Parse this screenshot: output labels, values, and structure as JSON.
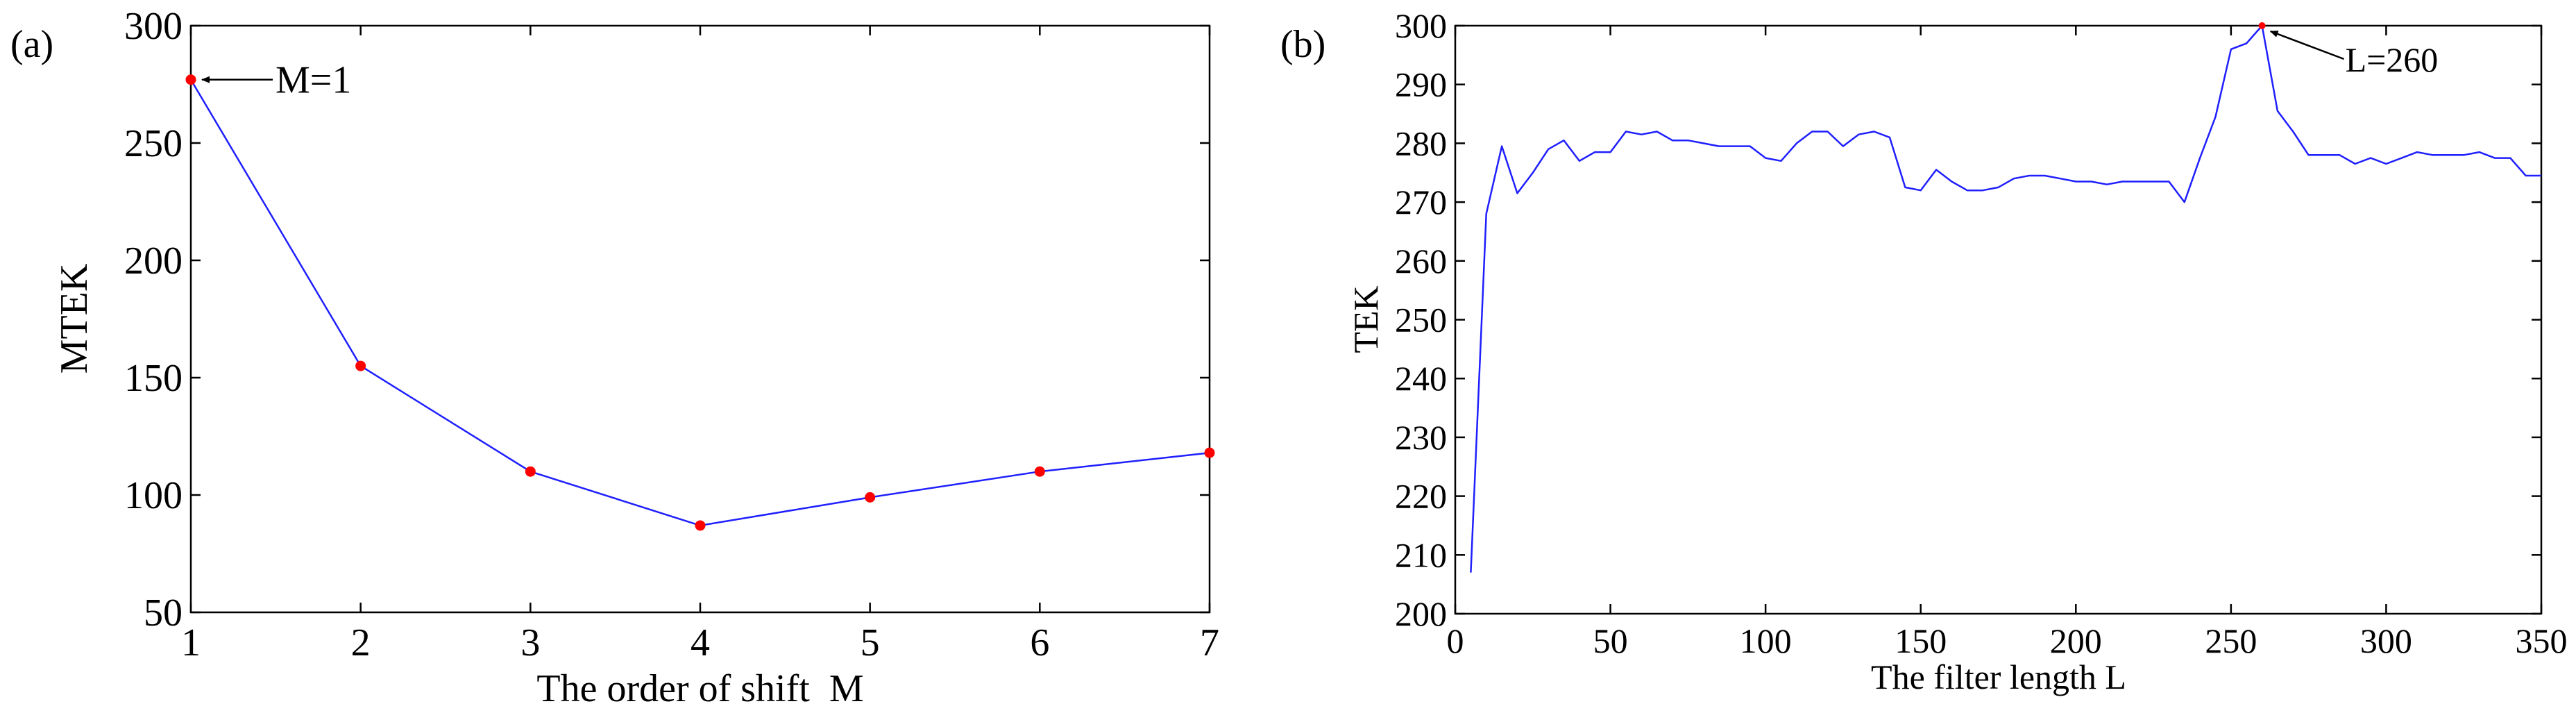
{
  "colors": {
    "line": "#1f1fff",
    "marker": "#ff0000",
    "axis": "#000000",
    "background": "#ffffff"
  },
  "panels": [
    {
      "label": "(a)"
    },
    {
      "label": "(b)"
    }
  ],
  "chart_data": [
    {
      "type": "line",
      "panel_label": "(a)",
      "xlabel": "The order of shift  M",
      "ylabel": "MTEK",
      "xlim": [
        1,
        7
      ],
      "ylim": [
        50,
        300
      ],
      "xticks": [
        1,
        2,
        3,
        4,
        5,
        6,
        7
      ],
      "yticks": [
        50,
        100,
        150,
        200,
        250,
        300
      ],
      "grid": false,
      "markers": true,
      "x": [
        1,
        2,
        3,
        4,
        5,
        6,
        7
      ],
      "y": [
        277,
        155,
        110,
        87,
        99,
        110,
        118
      ],
      "annotation": {
        "text": "M=1",
        "x": 1,
        "y": 277
      }
    },
    {
      "type": "line",
      "panel_label": "(b)",
      "xlabel": "The filter length L",
      "ylabel": "TEK",
      "xlim": [
        0,
        350
      ],
      "ylim": [
        200,
        300
      ],
      "xticks": [
        0,
        50,
        100,
        150,
        200,
        250,
        300,
        350
      ],
      "yticks": [
        200,
        210,
        220,
        230,
        240,
        250,
        260,
        270,
        280,
        290,
        300
      ],
      "grid": false,
      "markers": false,
      "x": [
        5,
        10,
        15,
        20,
        25,
        30,
        35,
        40,
        45,
        50,
        55,
        60,
        65,
        70,
        75,
        80,
        85,
        90,
        95,
        100,
        105,
        110,
        115,
        120,
        125,
        130,
        135,
        140,
        145,
        150,
        155,
        160,
        165,
        170,
        175,
        180,
        185,
        190,
        195,
        200,
        205,
        210,
        215,
        220,
        225,
        230,
        235,
        240,
        245,
        250,
        255,
        260,
        265,
        270,
        275,
        280,
        285,
        290,
        295,
        300,
        305,
        310,
        315,
        320,
        325,
        330,
        335,
        340,
        345,
        350
      ],
      "y": [
        207,
        268,
        279.5,
        271.5,
        275,
        279,
        280.5,
        277,
        278.5,
        278.5,
        282,
        281.5,
        282,
        280.5,
        280.5,
        280,
        279.5,
        279.5,
        279.5,
        277.5,
        277,
        280,
        282,
        282,
        279.5,
        281.5,
        282,
        281,
        272.5,
        272,
        275.5,
        273.5,
        272,
        272,
        272.5,
        274,
        274.5,
        274.5,
        274,
        273.5,
        273.5,
        273,
        273.5,
        273.5,
        273.5,
        273.5,
        270,
        277.5,
        284.5,
        296,
        297,
        300,
        285.5,
        282,
        278,
        278,
        278,
        276.5,
        277.5,
        276.5,
        277.5,
        278.5,
        278,
        278,
        278,
        278.5,
        277.5,
        277.5,
        274.5,
        274.5
      ],
      "highlight_point": {
        "x": 260,
        "y": 300
      },
      "annotation": {
        "text": "L=260",
        "x": 260,
        "y": 300
      }
    }
  ]
}
